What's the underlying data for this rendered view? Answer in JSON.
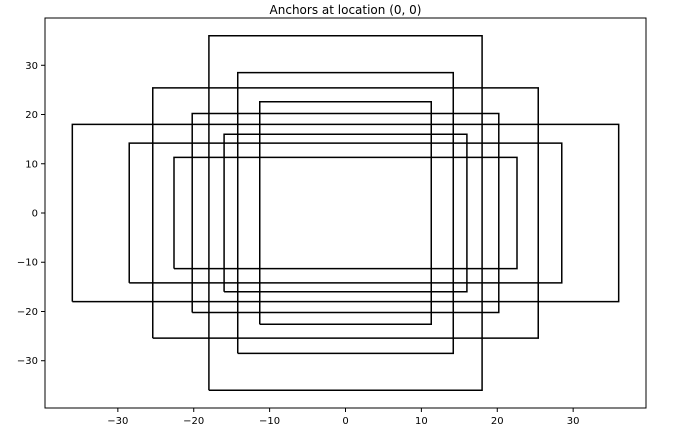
{
  "chart_data": {
    "type": "line",
    "title": "Anchors at location (0, 0)",
    "xlabel": "",
    "ylabel": "",
    "xlim": [
      -39.6,
      39.6
    ],
    "ylim": [
      -39.6,
      39.6
    ],
    "grid": false,
    "legend": "none",
    "line_color": "#000000",
    "xticks": [
      -30,
      -20,
      -10,
      0,
      10,
      20,
      30
    ],
    "yticks": [
      -30,
      -20,
      -10,
      0,
      10,
      20,
      30
    ],
    "xtick_labels": [
      "−30",
      "−20",
      "−10",
      "0",
      "10",
      "20",
      "30"
    ],
    "ytick_labels": [
      "−30",
      "−20",
      "−10",
      "0",
      "10",
      "20",
      "30"
    ],
    "series": [
      {
        "x": [
          -11.3,
          11.3,
          11.3,
          -11.3,
          -11.3
        ],
        "y": [
          -22.6,
          -22.6,
          22.6,
          22.6,
          -22.6
        ]
      },
      {
        "x": [
          -16,
          16,
          16,
          -16,
          -16
        ],
        "y": [
          -16,
          -16,
          16,
          16,
          -16
        ]
      },
      {
        "x": [
          -22.6,
          22.6,
          22.6,
          -22.6,
          -22.6
        ],
        "y": [
          -11.3,
          -11.3,
          11.3,
          11.3,
          -11.3
        ]
      },
      {
        "x": [
          -14.2,
          14.2,
          14.2,
          -14.2,
          -14.2
        ],
        "y": [
          -28.5,
          -28.5,
          28.5,
          28.5,
          -28.5
        ]
      },
      {
        "x": [
          -20.2,
          20.2,
          20.2,
          -20.2,
          -20.2
        ],
        "y": [
          -20.2,
          -20.2,
          20.2,
          20.2,
          -20.2
        ]
      },
      {
        "x": [
          -28.5,
          28.5,
          28.5,
          -28.5,
          -28.5
        ],
        "y": [
          -14.2,
          -14.2,
          14.2,
          14.2,
          -14.2
        ]
      },
      {
        "x": [
          -18,
          18,
          18,
          -18,
          -18
        ],
        "y": [
          -36,
          -36,
          36,
          36,
          -36
        ]
      },
      {
        "x": [
          -25.4,
          25.4,
          25.4,
          -25.4,
          -25.4
        ],
        "y": [
          -25.4,
          -25.4,
          25.4,
          25.4,
          -25.4
        ]
      },
      {
        "x": [
          -36,
          36,
          36,
          -36,
          -36
        ],
        "y": [
          -18,
          -18,
          18,
          18,
          -18
        ]
      }
    ]
  }
}
